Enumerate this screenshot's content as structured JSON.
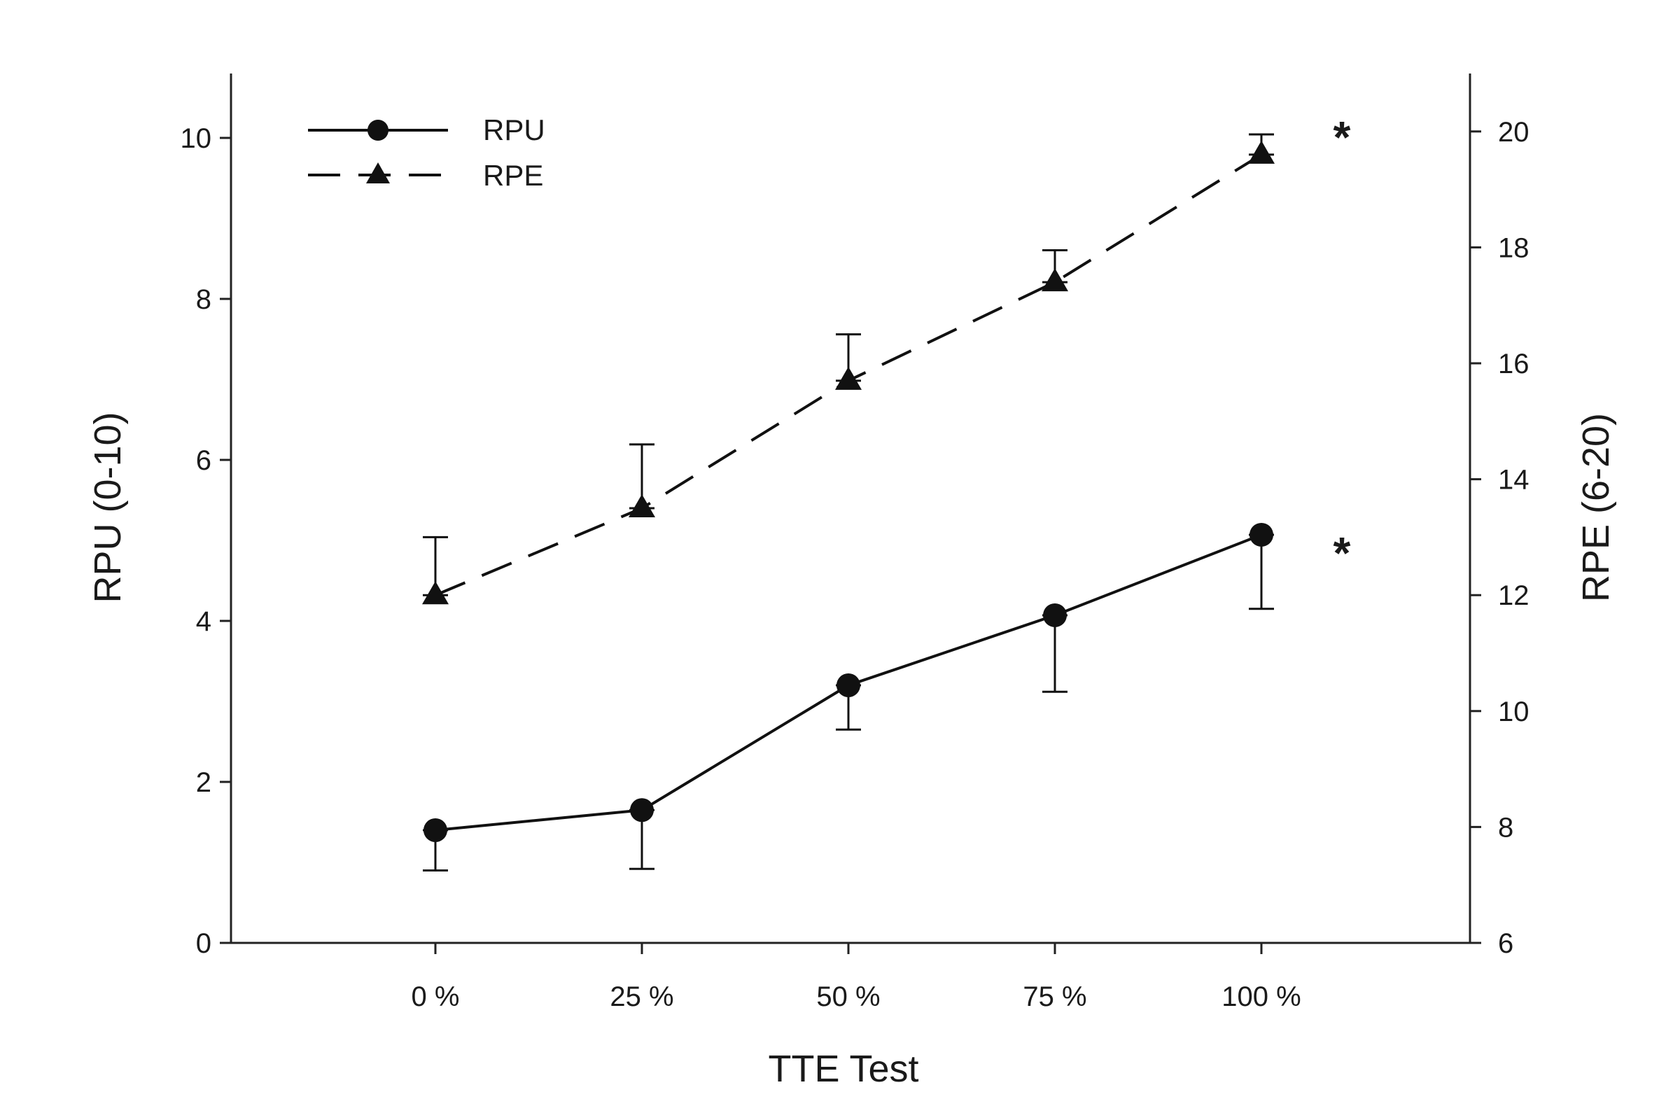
{
  "chart_data": {
    "type": "line",
    "categories": [
      "0 %",
      "25 %",
      "50 %",
      "75 %",
      "100 %"
    ],
    "xlabel": "TTE Test",
    "ylabel_left": "RPU (0-10)",
    "ylabel_right": "RPE (6-20)",
    "ylim_left": [
      0,
      10.8
    ],
    "ylim_right": [
      6,
      21
    ],
    "yticks_left": [
      0,
      2,
      4,
      6,
      8,
      10
    ],
    "yticks_right": [
      6,
      8,
      10,
      12,
      14,
      16,
      18,
      20
    ],
    "grid": false,
    "legend_position": "top-left",
    "series": [
      {
        "name": "RPU",
        "axis": "left",
        "marker": "circle",
        "line_style": "solid",
        "values": [
          1.4,
          1.65,
          3.2,
          4.07,
          5.07
        ],
        "error_upper": [
          1.4,
          1.65,
          3.2,
          4.07,
          5.07
        ],
        "error_lower": [
          0.9,
          0.92,
          2.65,
          3.12,
          4.15
        ]
      },
      {
        "name": "RPE",
        "axis": "right",
        "marker": "triangle",
        "line_style": "dashed",
        "values": [
          12.0,
          13.5,
          15.7,
          17.4,
          19.6
        ],
        "error_upper": [
          13.0,
          14.6,
          16.5,
          17.95,
          19.95
        ],
        "error_lower": [
          12.0,
          13.5,
          15.7,
          17.4,
          19.6
        ]
      }
    ],
    "annotations": [
      {
        "text": "*",
        "series": "RPE",
        "category_index": 4
      },
      {
        "text": "*",
        "series": "RPU",
        "category_index": 4
      }
    ],
    "colors": {
      "line": "#111111",
      "axis": "#222222",
      "text": "#1a1a1a"
    }
  }
}
